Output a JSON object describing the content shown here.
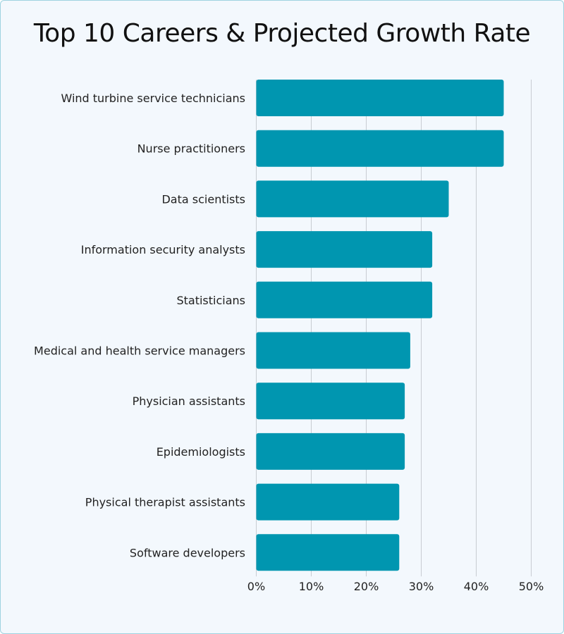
{
  "chart_data": {
    "type": "bar",
    "orientation": "horizontal",
    "title": "Top 10 Careers & Projected Growth Rate",
    "categories": [
      "Wind turbine service technicians",
      "Nurse practitioners",
      "Data scientists",
      "Information security analysts",
      "Statisticians",
      "Medical and health service managers",
      "Physician assistants",
      "Epidemiologists",
      "Physical therapist assistants",
      "Software developers"
    ],
    "values": [
      45,
      45,
      35,
      32,
      32,
      28,
      27,
      27,
      26,
      26
    ],
    "xlim": [
      0,
      50
    ],
    "xticks": [
      "0%",
      "10%",
      "20%",
      "30%",
      "40%",
      "50%"
    ],
    "grid": "vertical",
    "bar_color": "#0096b0",
    "grid_color": "#c8ccd2"
  }
}
